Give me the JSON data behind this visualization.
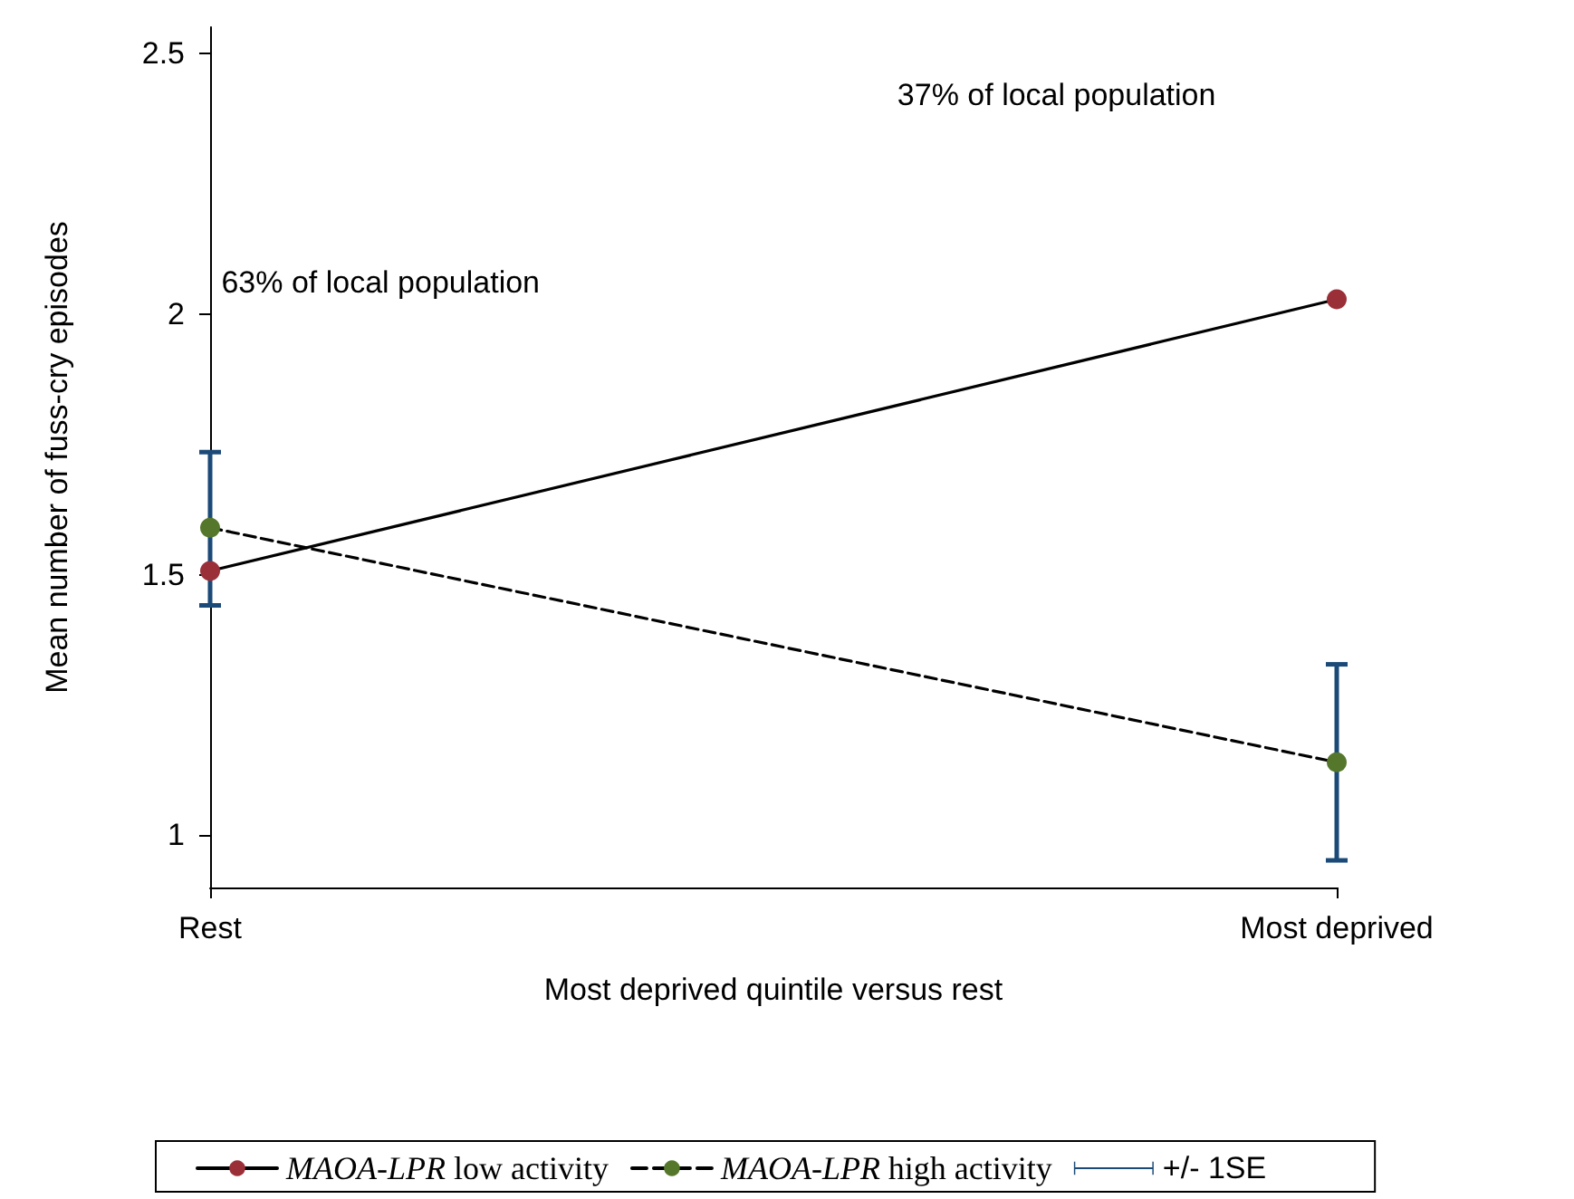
{
  "chart_data": {
    "type": "line",
    "xlabel": "Most deprived quintile versus rest",
    "ylabel": "Mean number of fuss-cry episodes",
    "categories": [
      "Rest",
      "Most deprived"
    ],
    "ylim": [
      0.9,
      2.55
    ],
    "yticks": [
      1,
      1.5,
      2,
      2.5
    ],
    "series": [
      {
        "name": "MAOA-LPR low activity",
        "color": "#9b2f38",
        "values": [
          1.507,
          2.028
        ],
        "line_style": "solid"
      },
      {
        "name": "MAOA-LPR high activity",
        "color": "#55772b",
        "values": [
          1.59,
          1.14
        ],
        "errors": [
          [
            1.441,
            1.735
          ],
          [
            0.952,
            1.328
          ]
        ],
        "line_style": "dashed"
      }
    ],
    "annotations": [
      "63% of local population",
      "37% of local population",
      "+/- 1SE"
    ],
    "marker": "circle",
    "grid": false,
    "legend": "bottom"
  }
}
